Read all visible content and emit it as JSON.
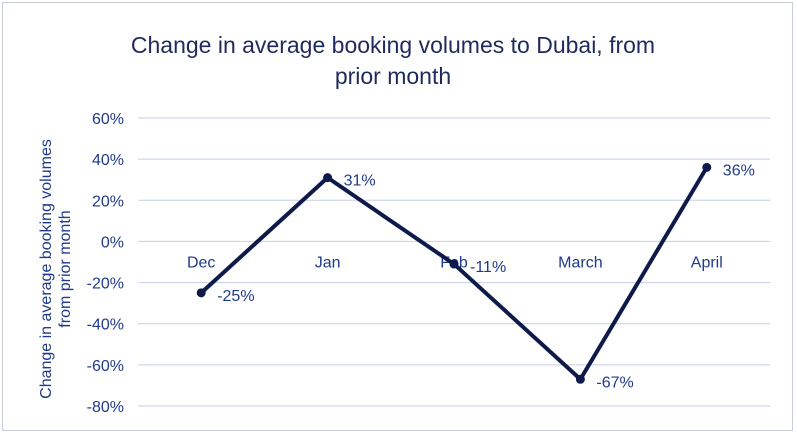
{
  "chart_data": {
    "type": "line",
    "title_lines": [
      "Change in average booking volumes to Dubai, from",
      "prior month"
    ],
    "ylabel_lines": [
      "Change in average booking volumes",
      "from prior month"
    ],
    "xlabel": "",
    "categories": [
      "Dec",
      "Jan",
      "Feb",
      "March",
      "April"
    ],
    "ylim": [
      -80,
      60
    ],
    "yticks": [
      60,
      40,
      20,
      0,
      -20,
      -40,
      -60,
      -80
    ],
    "ytick_labels": [
      "60%",
      "40%",
      "20%",
      "0%",
      "-20%",
      "-40%",
      "-60%",
      "-80%"
    ],
    "grid": true,
    "series": [
      {
        "values": [
          -25,
          31,
          -11,
          -67,
          36
        ],
        "data_labels": [
          "-25%",
          "31%",
          "-11%",
          "-67%",
          "36%"
        ],
        "color": "#0d1a4a"
      }
    ]
  }
}
